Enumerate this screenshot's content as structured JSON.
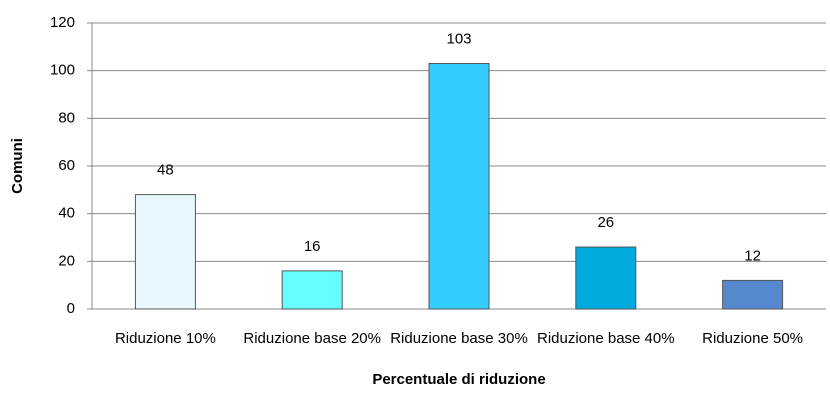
{
  "chart_data": {
    "type": "bar",
    "x_label": "Percentuale di riduzione",
    "y_label": "Comuni",
    "categories": [
      "Riduzione 10%",
      "Riduzione base 20%",
      "Riduzione base 30%",
      "Riduzione base 40%",
      "Riduzione 50%"
    ],
    "values": [
      48,
      16,
      103,
      26,
      12
    ],
    "colors": [
      "#e8f8fc",
      "#66ffff",
      "#33ccff",
      "#00aadd",
      "#5588cc"
    ],
    "ylim": [
      0,
      120
    ],
    "yticks": [
      0,
      20,
      40,
      60,
      80,
      100,
      120
    ],
    "grid": true
  }
}
